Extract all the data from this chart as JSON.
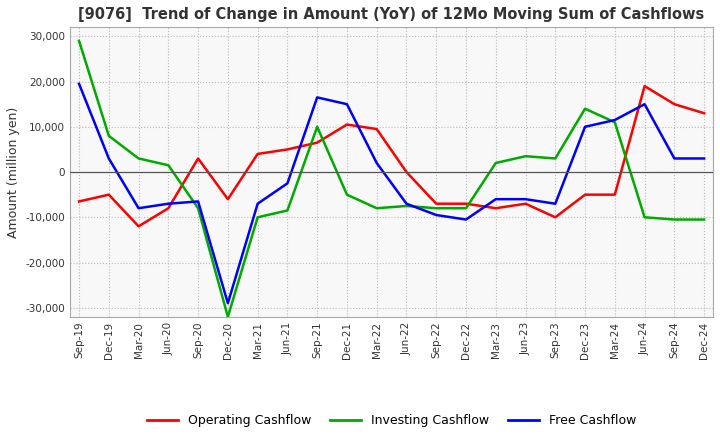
{
  "title": "[9076]  Trend of Change in Amount (YoY) of 12Mo Moving Sum of Cashflows",
  "ylabel": "Amount (million yen)",
  "ylim": [
    -32000,
    32000
  ],
  "yticks": [
    -30000,
    -20000,
    -10000,
    0,
    10000,
    20000,
    30000
  ],
  "x_labels": [
    "Sep-19",
    "Dec-19",
    "Mar-20",
    "Jun-20",
    "Sep-20",
    "Dec-20",
    "Mar-21",
    "Jun-21",
    "Sep-21",
    "Dec-21",
    "Mar-22",
    "Jun-22",
    "Sep-22",
    "Dec-22",
    "Mar-23",
    "Jun-23",
    "Sep-23",
    "Dec-23",
    "Mar-24",
    "Jun-24",
    "Sep-24",
    "Dec-24"
  ],
  "operating": [
    -6500,
    -5000,
    -12000,
    -8000,
    3000,
    -6000,
    4000,
    5000,
    6500,
    10500,
    9500,
    0,
    -7000,
    -7000,
    -8000,
    -7000,
    -10000,
    -5000,
    -5000,
    19000,
    15000,
    13000
  ],
  "investing": [
    29000,
    8000,
    3000,
    1500,
    -8000,
    -32000,
    -10000,
    -8500,
    10000,
    -5000,
    -8000,
    -7500,
    -8000,
    -8000,
    2000,
    3500,
    3000,
    14000,
    11000,
    -10000,
    -10500,
    -10500
  ],
  "free": [
    19500,
    3000,
    -8000,
    -7000,
    -6500,
    -29000,
    -7000,
    -2500,
    16500,
    15000,
    2000,
    -7000,
    -9500,
    -10500,
    -6000,
    -6000,
    -7000,
    10000,
    11500,
    15000,
    3000,
    3000
  ],
  "operating_color": "#FF0000",
  "investing_color": "#00AA00",
  "free_color": "#0000FF",
  "bg_color": "#FFFFFF",
  "plot_bg_color": "#F8F8F8",
  "grid_color": "#BBBBBB",
  "zero_line_color": "#555555",
  "legend_labels": [
    "Operating Cashflow",
    "Investing Cashflow",
    "Free Cashflow"
  ],
  "title_color": "#333333",
  "tick_color": "#333333"
}
